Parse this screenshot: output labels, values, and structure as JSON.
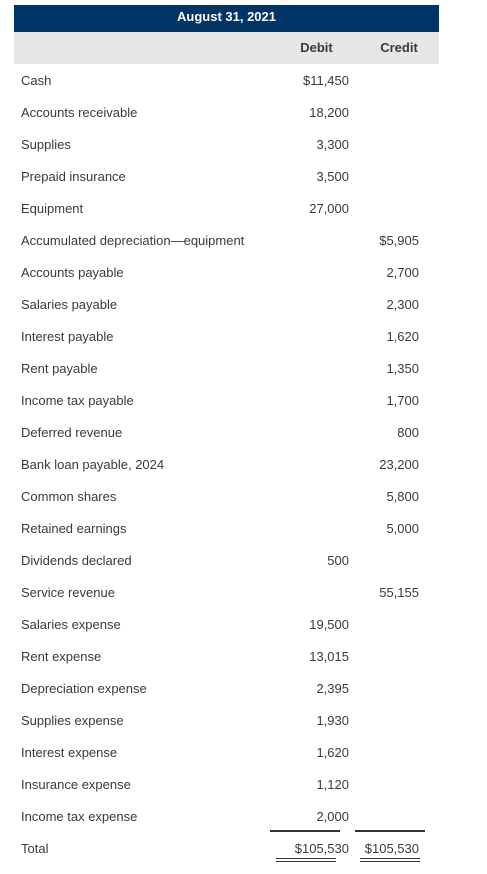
{
  "title": "August 31, 2021",
  "columns": {
    "debit": "Debit",
    "credit": "Credit"
  },
  "rows": [
    {
      "account": "Cash",
      "debit": "$11,450",
      "credit": ""
    },
    {
      "account": "Accounts receivable",
      "debit": "18,200",
      "credit": ""
    },
    {
      "account": "Supplies",
      "debit": "3,300",
      "credit": ""
    },
    {
      "account": "Prepaid insurance",
      "debit": "3,500",
      "credit": ""
    },
    {
      "account": "Equipment",
      "debit": "27,000",
      "credit": ""
    },
    {
      "account": "Accumulated depreciation—equipment",
      "debit": "",
      "credit": "$5,905"
    },
    {
      "account": "Accounts payable",
      "debit": "",
      "credit": "2,700"
    },
    {
      "account": "Salaries payable",
      "debit": "",
      "credit": "2,300"
    },
    {
      "account": "Interest payable",
      "debit": "",
      "credit": "1,620"
    },
    {
      "account": "Rent payable",
      "debit": "",
      "credit": "1,350"
    },
    {
      "account": "Income tax payable",
      "debit": "",
      "credit": "1,700"
    },
    {
      "account": "Deferred revenue",
      "debit": "",
      "credit": "800"
    },
    {
      "account": "Bank loan payable, 2024",
      "debit": "",
      "credit": "23,200"
    },
    {
      "account": "Common shares",
      "debit": "",
      "credit": "5,800"
    },
    {
      "account": "Retained earnings",
      "debit": "",
      "credit": "5,000"
    },
    {
      "account": "Dividends declared",
      "debit": "500",
      "credit": ""
    },
    {
      "account": "Service revenue",
      "debit": "",
      "credit": "55,155"
    },
    {
      "account": "Salaries expense",
      "debit": "19,500",
      "credit": ""
    },
    {
      "account": "Rent expense",
      "debit": "13,015",
      "credit": ""
    },
    {
      "account": "Depreciation expense",
      "debit": "2,395",
      "credit": ""
    },
    {
      "account": "Supplies expense",
      "debit": "1,930",
      "credit": ""
    },
    {
      "account": "Interest expense",
      "debit": "1,620",
      "credit": ""
    },
    {
      "account": "Insurance expense",
      "debit": "1,120",
      "credit": ""
    },
    {
      "account": "Income tax expense",
      "debit": "2,000",
      "credit": ""
    }
  ],
  "total": {
    "account": "Total",
    "debit": "$105,530",
    "credit": "$105,530"
  }
}
